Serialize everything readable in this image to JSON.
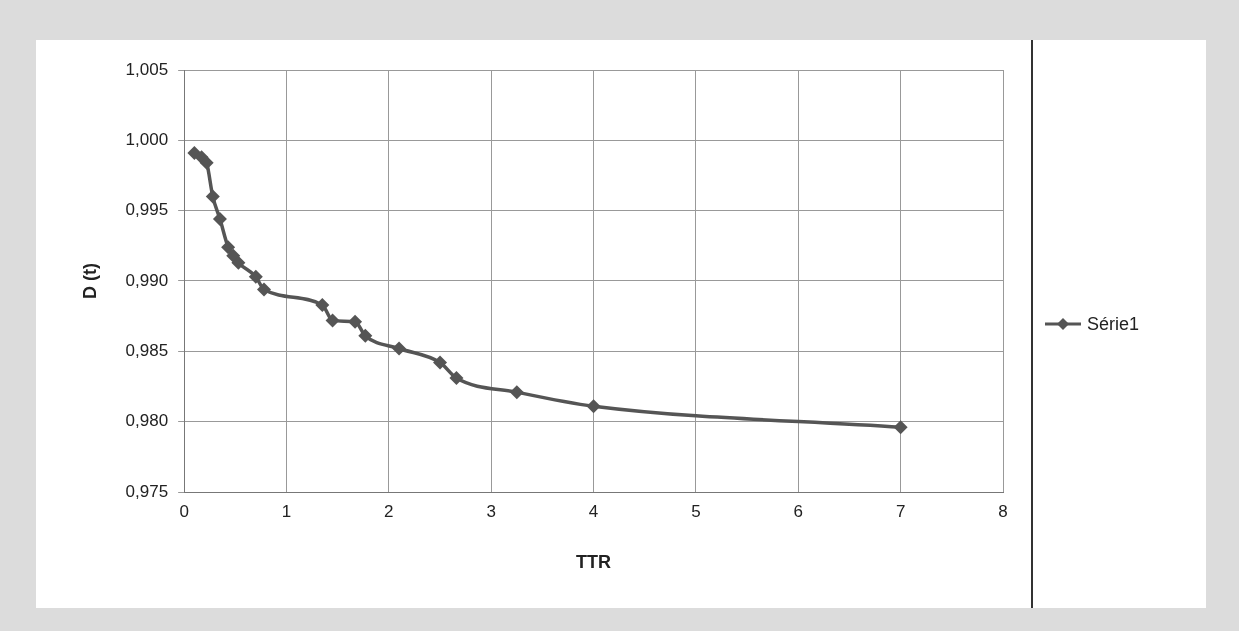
{
  "chart_data": {
    "type": "line",
    "xlabel": "TTR",
    "ylabel": "D (t)",
    "x": [
      0.1,
      0.17,
      0.22,
      0.28,
      0.35,
      0.43,
      0.48,
      0.53,
      0.7,
      0.78,
      1.35,
      1.45,
      1.67,
      1.77,
      2.1,
      2.5,
      2.66,
      3.25,
      4.0,
      7.0
    ],
    "series": [
      {
        "name": "Série1",
        "color": "#555555",
        "values": [
          0.9991,
          0.9988,
          0.9984,
          0.996,
          0.9944,
          0.9924,
          0.9918,
          0.9913,
          0.9903,
          0.9894,
          0.9883,
          0.9872,
          0.9871,
          0.9861,
          0.9852,
          0.9842,
          0.9831,
          0.9821,
          0.9811,
          0.9796
        ]
      }
    ],
    "xlim": [
      0,
      8
    ],
    "xticks": [
      0,
      1,
      2,
      3,
      4,
      5,
      6,
      7,
      8
    ],
    "ylim": [
      0.975,
      1.005
    ],
    "yticks": [
      {
        "value": 0.975,
        "label": "0,975"
      },
      {
        "value": 0.98,
        "label": "0,980"
      },
      {
        "value": 0.985,
        "label": "0,985"
      },
      {
        "value": 0.99,
        "label": "0,990"
      },
      {
        "value": 0.995,
        "label": "0,995"
      },
      {
        "value": 1.0,
        "label": "1,000"
      },
      {
        "value": 1.005,
        "label": "1,005"
      }
    ],
    "grid": true,
    "legend": "right",
    "marker": "diamond",
    "line_style": "solid"
  }
}
